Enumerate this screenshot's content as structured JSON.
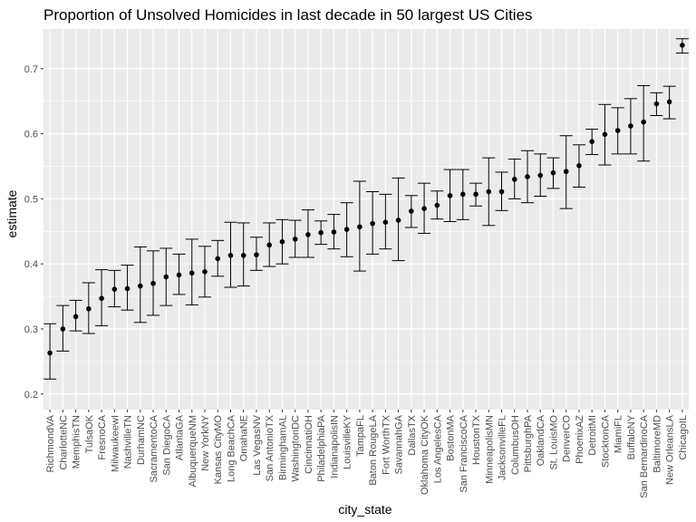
{
  "chart_data": {
    "type": "scatter",
    "title": "Proportion of Unsolved Homicides in last decade in 50 largest US Cities",
    "xlabel": "city_state",
    "ylabel": "estimate",
    "ylim": [
      0.2,
      0.75
    ],
    "yticks": [
      0.2,
      0.3,
      0.4,
      0.5,
      0.6,
      0.7
    ],
    "grid": true,
    "background": "#ebebeb",
    "gridline_color": "#ffffff",
    "point_color": "#000000",
    "errorbar_color": "#000000",
    "categories": [
      "RichmondVA",
      "CharlotteNC",
      "MemphisTN",
      "TulsaOK",
      "FresnoCA",
      "MilwaukeewI",
      "NashvilleTN",
      "DurhamNC",
      "SacramentoCA",
      "San DiegoCA",
      "AtlantaGA",
      "AlbuquerqueNM",
      "New YorkNY",
      "Kansas CityMO",
      "Long BeachCA",
      "OmahaNE",
      "Las VegasNV",
      "San AntonioTX",
      "BirminghamAL",
      "WashingtonDC",
      "CincinnatiOH",
      "PhiladelphiaPA",
      "IndianapolisIN",
      "LouisvilleKY",
      "TampaFL",
      "Baton RougeLA",
      "Fort WorthTX",
      "SavannahGA",
      "DallasTX",
      "Oklahoma CityOK",
      "Los AngelesCA",
      "BostonMA",
      "San FranciscoCA",
      "HoustonTX",
      "MinneapolisMN",
      "JacksonvilleFL",
      "ColumbusOH",
      "PittsburghPA",
      "OaklandCA",
      "St. LouisMO",
      "DenverCO",
      "PhoenixAZ",
      "DetroitMI",
      "StocktonCA",
      "MiamiFL",
      "BuffaloNY",
      "San BernardinoCA",
      "BaltimoreMD",
      "New OrleansLA",
      "ChicagoIL"
    ],
    "estimate": [
      0.263,
      0.3,
      0.319,
      0.331,
      0.347,
      0.361,
      0.362,
      0.366,
      0.37,
      0.38,
      0.383,
      0.386,
      0.388,
      0.408,
      0.413,
      0.413,
      0.414,
      0.429,
      0.434,
      0.438,
      0.445,
      0.448,
      0.449,
      0.453,
      0.457,
      0.462,
      0.464,
      0.467,
      0.481,
      0.485,
      0.49,
      0.505,
      0.507,
      0.507,
      0.511,
      0.511,
      0.53,
      0.534,
      0.536,
      0.54,
      0.542,
      0.551,
      0.588,
      0.599,
      0.605,
      0.612,
      0.618,
      0.646,
      0.649,
      0.736
    ],
    "conf_low": [
      0.223,
      0.266,
      0.297,
      0.293,
      0.305,
      0.334,
      0.329,
      0.31,
      0.321,
      0.336,
      0.353,
      0.337,
      0.349,
      0.381,
      0.364,
      0.366,
      0.39,
      0.396,
      0.4,
      0.41,
      0.41,
      0.43,
      0.423,
      0.411,
      0.389,
      0.415,
      0.423,
      0.405,
      0.456,
      0.447,
      0.469,
      0.465,
      0.468,
      0.489,
      0.459,
      0.482,
      0.5,
      0.494,
      0.504,
      0.516,
      0.485,
      0.518,
      0.568,
      0.552,
      0.569,
      0.569,
      0.558,
      0.628,
      0.623,
      0.724
    ],
    "conf_high": [
      0.308,
      0.336,
      0.344,
      0.371,
      0.391,
      0.39,
      0.398,
      0.426,
      0.42,
      0.424,
      0.415,
      0.438,
      0.427,
      0.436,
      0.464,
      0.463,
      0.441,
      0.463,
      0.468,
      0.467,
      0.483,
      0.466,
      0.476,
      0.494,
      0.527,
      0.511,
      0.507,
      0.532,
      0.505,
      0.524,
      0.512,
      0.545,
      0.545,
      0.524,
      0.563,
      0.541,
      0.561,
      0.574,
      0.569,
      0.563,
      0.597,
      0.583,
      0.607,
      0.645,
      0.64,
      0.654,
      0.674,
      0.663,
      0.673,
      0.746
    ]
  }
}
